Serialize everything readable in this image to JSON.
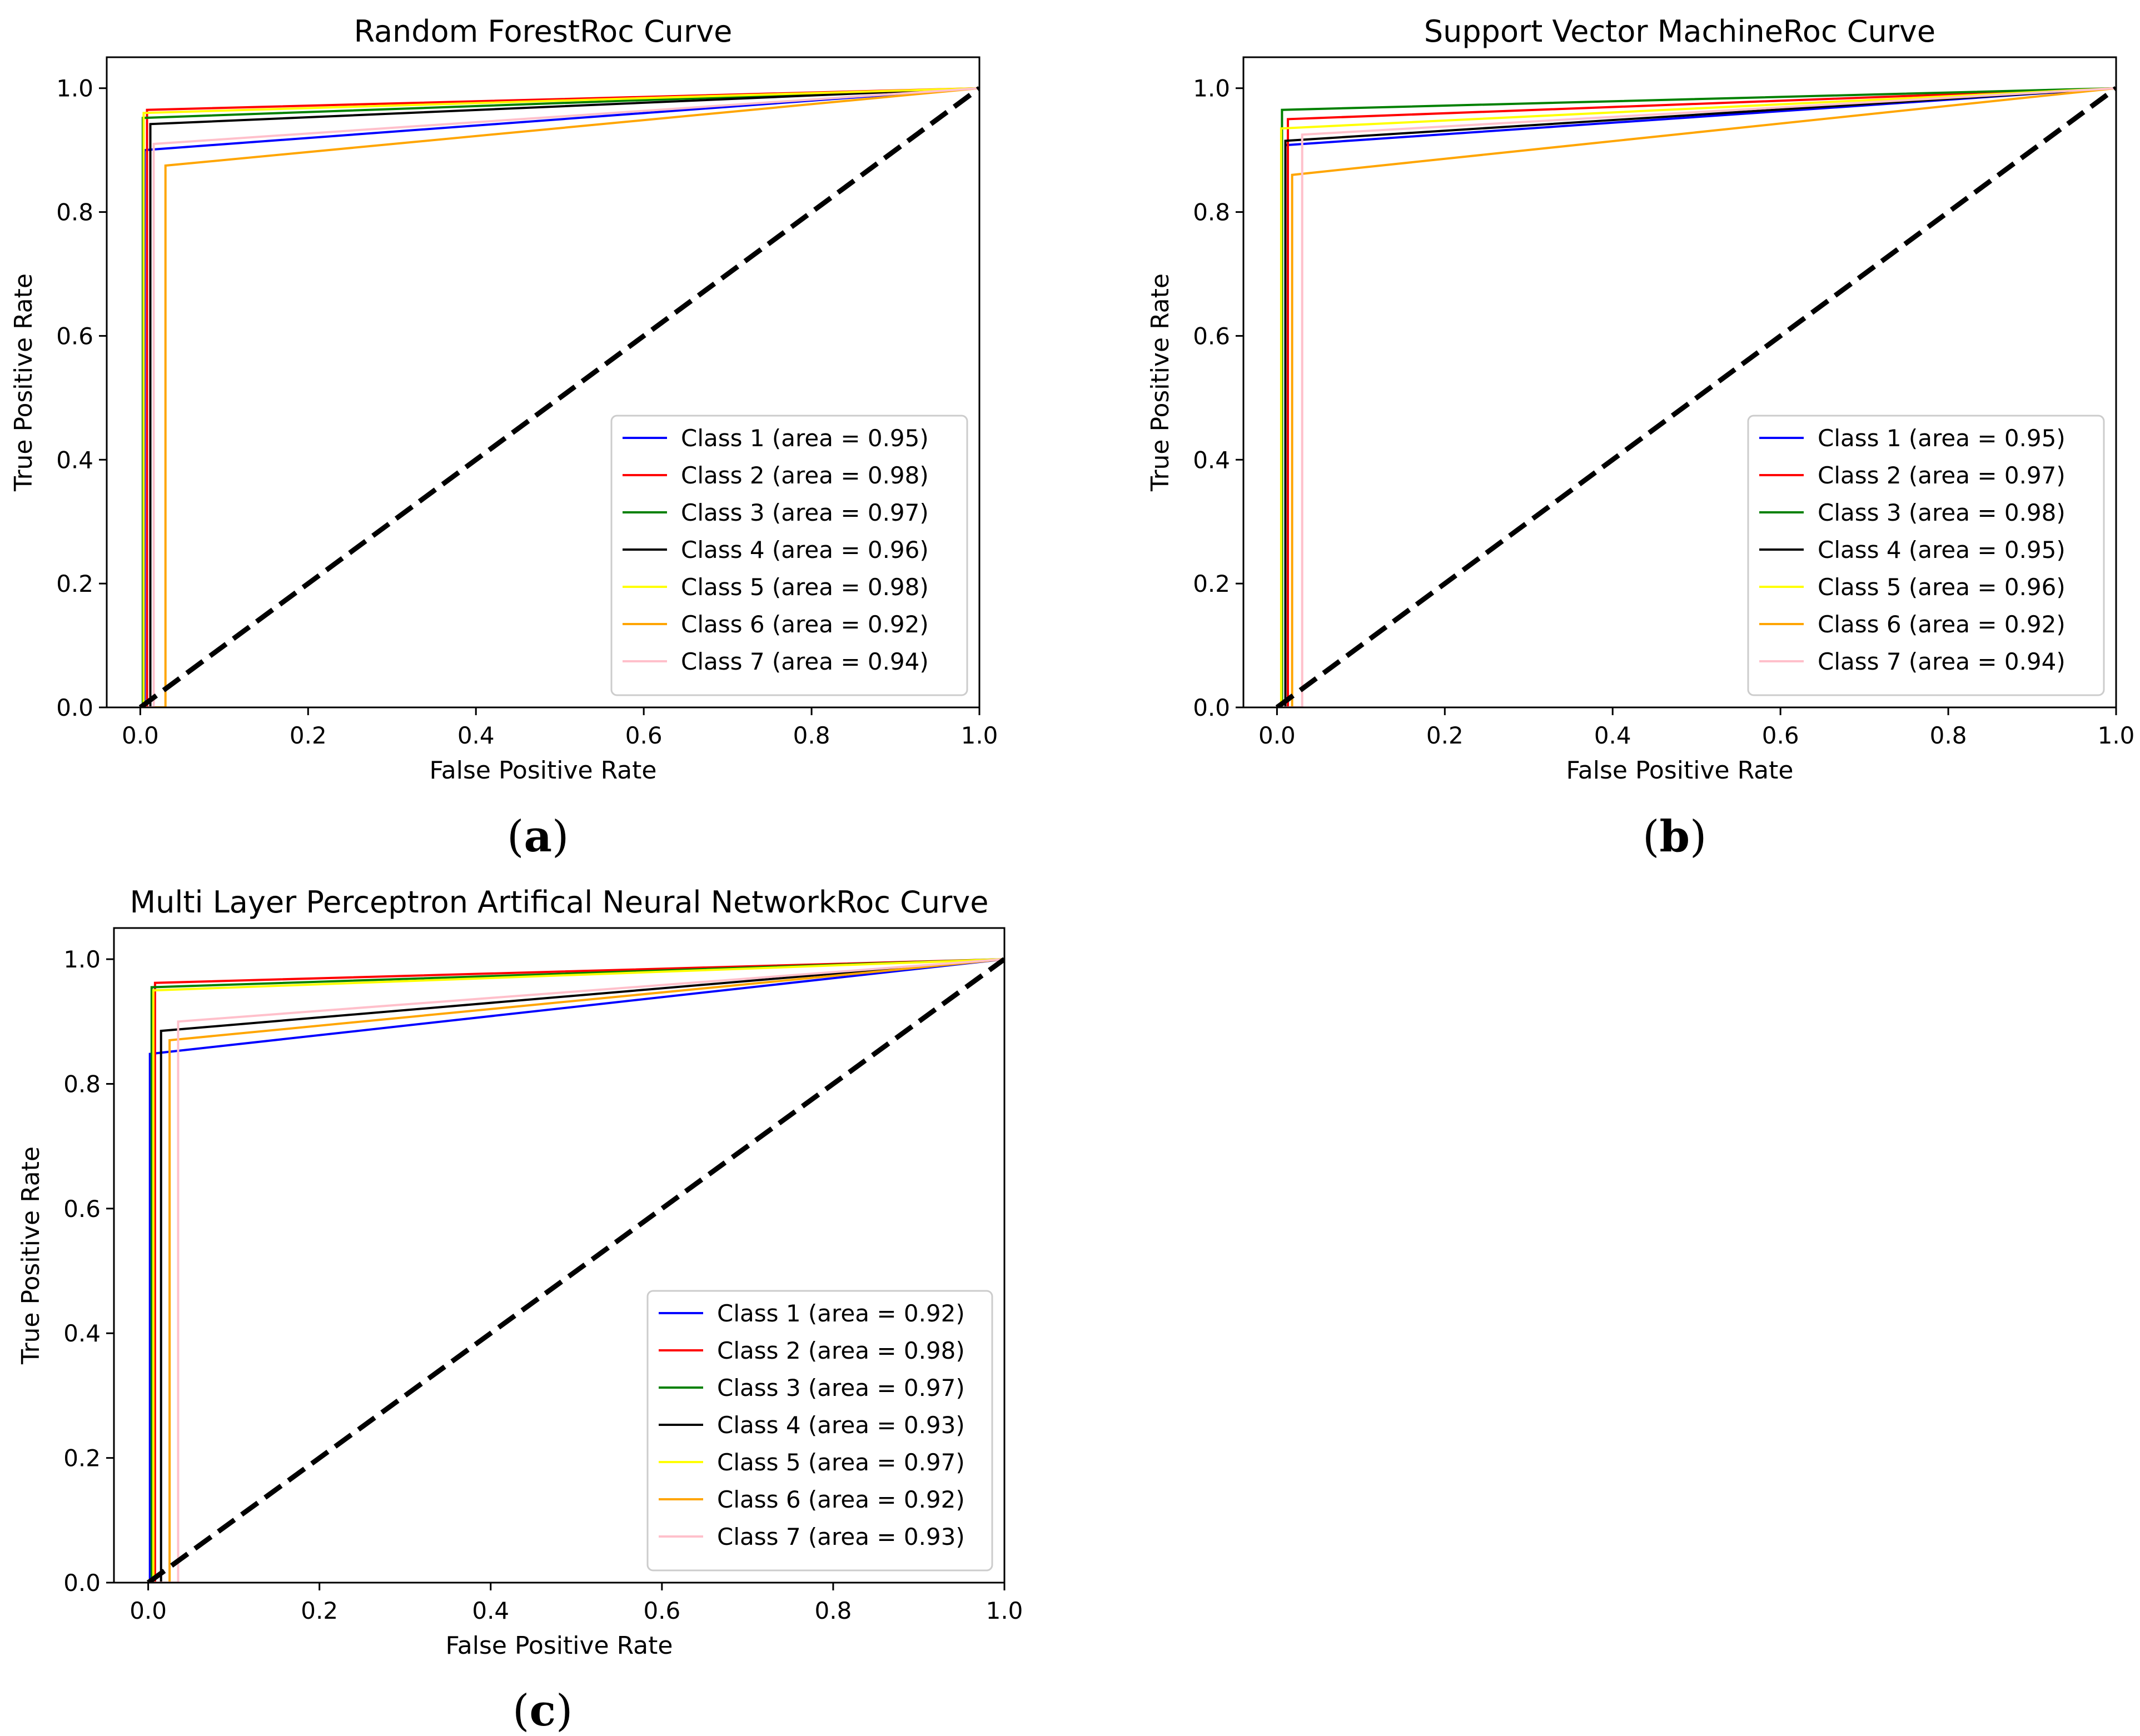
{
  "panels": [
    {
      "label": "a",
      "chart_data": {
        "type": "line",
        "title": "Random ForestRoc Curve",
        "xlabel": "False Positive Rate",
        "ylabel": "True Positive Rate",
        "xlim": [
          -0.04,
          1.0
        ],
        "ylim": [
          0.0,
          1.05
        ],
        "xticks": [
          0.0,
          0.2,
          0.4,
          0.6,
          0.8,
          1.0
        ],
        "yticks": [
          0.0,
          0.2,
          0.4,
          0.6,
          0.8,
          1.0
        ],
        "legend_position": "lower right",
        "grid": false,
        "diagonal": {
          "x": [
            0,
            1
          ],
          "y": [
            0,
            1
          ],
          "color": "#000000",
          "style": "dashed"
        },
        "series": [
          {
            "name": "Class 1 (area = 0.95)",
            "color": "#0000ff",
            "x": [
              0,
              0.005,
              0.005,
              1
            ],
            "y": [
              0,
              0,
              0.9,
              1
            ]
          },
          {
            "name": "Class 2 (area = 0.98)",
            "color": "#ff0000",
            "x": [
              0,
              0.008,
              0.008,
              1
            ],
            "y": [
              0,
              0,
              0.965,
              1
            ]
          },
          {
            "name": "Class 3 (area = 0.97)",
            "color": "#008000",
            "x": [
              0,
              0.003,
              0.003,
              1
            ],
            "y": [
              0,
              0,
              0.952,
              1
            ]
          },
          {
            "name": "Class 4 (area = 0.96)",
            "color": "#000000",
            "x": [
              0,
              0.012,
              0.012,
              1
            ],
            "y": [
              0,
              0,
              0.942,
              1
            ]
          },
          {
            "name": "Class 5 (area = 0.98)",
            "color": "#ffff00",
            "x": [
              0,
              0.004,
              0.004,
              1
            ],
            "y": [
              0,
              0,
              0.96,
              1
            ]
          },
          {
            "name": "Class 6 (area = 0.92)",
            "color": "#ffa500",
            "x": [
              0,
              0.03,
              0.03,
              1
            ],
            "y": [
              0,
              0,
              0.875,
              1
            ]
          },
          {
            "name": "Class 7 (area = 0.94)",
            "color": "#ffc0cb",
            "x": [
              0,
              0.016,
              0.016,
              1
            ],
            "y": [
              0,
              0,
              0.91,
              1
            ]
          }
        ]
      }
    },
    {
      "label": "b",
      "chart_data": {
        "type": "line",
        "title": "Support Vector MachineRoc Curve",
        "xlabel": "False Positive Rate",
        "ylabel": "True Positive Rate",
        "xlim": [
          -0.04,
          1.0
        ],
        "ylim": [
          0.0,
          1.05
        ],
        "xticks": [
          0.0,
          0.2,
          0.4,
          0.6,
          0.8,
          1.0
        ],
        "yticks": [
          0.0,
          0.2,
          0.4,
          0.6,
          0.8,
          1.0
        ],
        "legend_position": "lower right",
        "grid": false,
        "diagonal": {
          "x": [
            0,
            1
          ],
          "y": [
            0,
            1
          ],
          "color": "#000000",
          "style": "dashed"
        },
        "series": [
          {
            "name": "Class 1 (area = 0.95)",
            "color": "#0000ff",
            "x": [
              0,
              0.01,
              0.01,
              1
            ],
            "y": [
              0,
              0,
              0.908,
              1
            ]
          },
          {
            "name": "Class 2 (area = 0.97)",
            "color": "#ff0000",
            "x": [
              0,
              0.013,
              0.013,
              1
            ],
            "y": [
              0,
              0,
              0.95,
              1
            ]
          },
          {
            "name": "Class 3 (area = 0.98)",
            "color": "#008000",
            "x": [
              0,
              0.006,
              0.006,
              1
            ],
            "y": [
              0,
              0,
              0.965,
              1
            ]
          },
          {
            "name": "Class 4 (area = 0.95)",
            "color": "#000000",
            "x": [
              0,
              0.01,
              0.01,
              1
            ],
            "y": [
              0,
              0,
              0.915,
              1
            ]
          },
          {
            "name": "Class 5 (area = 0.96)",
            "color": "#ffff00",
            "x": [
              0,
              0.005,
              0.005,
              1
            ],
            "y": [
              0,
              0,
              0.935,
              1
            ]
          },
          {
            "name": "Class 6 (area = 0.92)",
            "color": "#ffa500",
            "x": [
              0,
              0.018,
              0.018,
              1
            ],
            "y": [
              0,
              0,
              0.86,
              1
            ]
          },
          {
            "name": "Class 7 (area = 0.94)",
            "color": "#ffc0cb",
            "x": [
              0,
              0.03,
              0.03,
              1
            ],
            "y": [
              0,
              0,
              0.925,
              1
            ]
          }
        ]
      }
    },
    {
      "label": "c",
      "chart_data": {
        "type": "line",
        "title": "Multi Layer Perceptron Artifical Neural NetworkRoc Curve",
        "xlabel": "False Positive Rate",
        "ylabel": "True Positive Rate",
        "xlim": [
          -0.04,
          1.0
        ],
        "ylim": [
          0.0,
          1.05
        ],
        "xticks": [
          0.0,
          0.2,
          0.4,
          0.6,
          0.8,
          1.0
        ],
        "yticks": [
          0.0,
          0.2,
          0.4,
          0.6,
          0.8,
          1.0
        ],
        "legend_position": "lower right",
        "grid": false,
        "diagonal": {
          "x": [
            0,
            1
          ],
          "y": [
            0,
            1
          ],
          "color": "#000000",
          "style": "dashed"
        },
        "series": [
          {
            "name": "Class 1 (area = 0.92)",
            "color": "#0000ff",
            "x": [
              0,
              0.002,
              0.002,
              1
            ],
            "y": [
              0,
              0,
              0.848,
              1
            ]
          },
          {
            "name": "Class 2 (area = 0.98)",
            "color": "#ff0000",
            "x": [
              0,
              0.008,
              0.008,
              1
            ],
            "y": [
              0,
              0,
              0.962,
              1
            ]
          },
          {
            "name": "Class 3 (area = 0.97)",
            "color": "#008000",
            "x": [
              0,
              0.004,
              0.004,
              1
            ],
            "y": [
              0,
              0,
              0.955,
              1
            ]
          },
          {
            "name": "Class 4 (area = 0.93)",
            "color": "#000000",
            "x": [
              0,
              0.015,
              0.015,
              1
            ],
            "y": [
              0,
              0,
              0.885,
              1
            ]
          },
          {
            "name": "Class 5 (area = 0.97)",
            "color": "#ffff00",
            "x": [
              0,
              0.006,
              0.006,
              1
            ],
            "y": [
              0,
              0,
              0.95,
              1
            ]
          },
          {
            "name": "Class 6 (area = 0.92)",
            "color": "#ffa500",
            "x": [
              0,
              0.025,
              0.025,
              1
            ],
            "y": [
              0,
              0,
              0.87,
              1
            ]
          },
          {
            "name": "Class 7 (area = 0.93)",
            "color": "#ffc0cb",
            "x": [
              0,
              0.035,
              0.035,
              1
            ],
            "y": [
              0,
              0,
              0.9,
              1
            ]
          }
        ]
      }
    }
  ]
}
